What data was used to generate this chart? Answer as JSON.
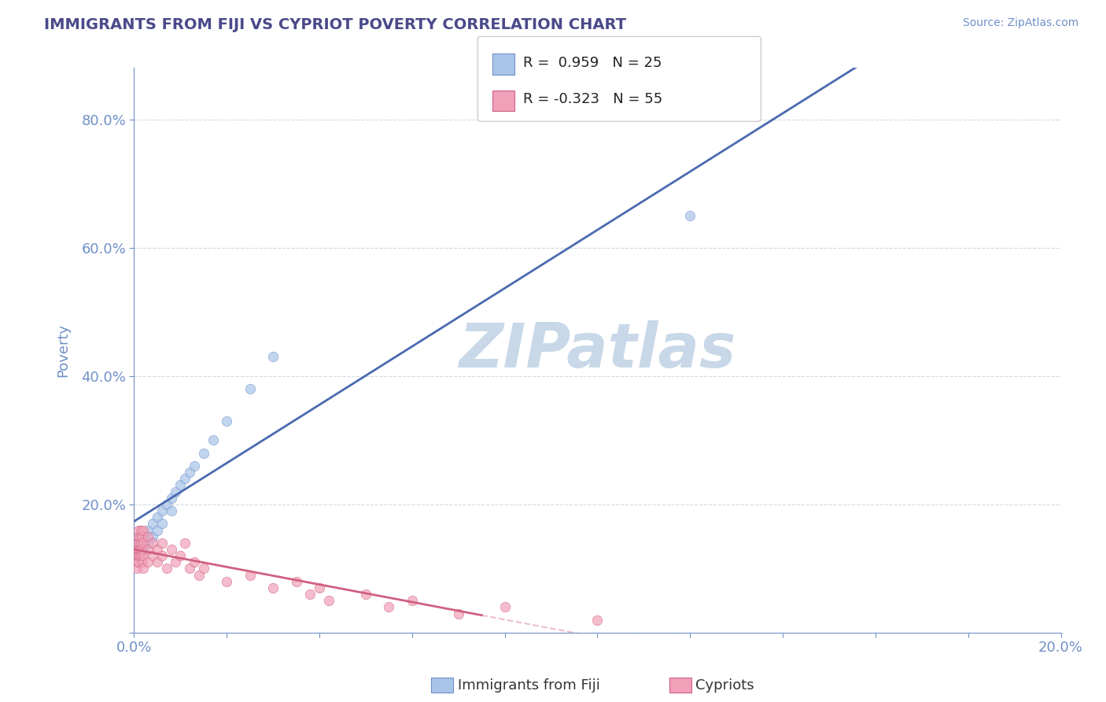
{
  "title": "IMMIGRANTS FROM FIJI VS CYPRIOT POVERTY CORRELATION CHART",
  "source_text": "Source: ZipAtlas.com",
  "ylabel": "Poverty",
  "xlim": [
    0.0,
    0.2
  ],
  "ylim": [
    0.0,
    0.88
  ],
  "xticks": [
    0.0,
    0.02,
    0.04,
    0.06,
    0.08,
    0.1,
    0.12,
    0.14,
    0.16,
    0.18,
    0.2
  ],
  "ytick_positions": [
    0.0,
    0.2,
    0.4,
    0.6,
    0.8
  ],
  "title_color": "#4a4a8a",
  "axis_color": "#7090c8",
  "tick_color": "#7090c8",
  "watermark_color": "#c8d8e8",
  "background_color": "#ffffff",
  "legend_R1": "0.959",
  "legend_N1": "25",
  "legend_R2": "-0.323",
  "legend_N2": "55",
  "fiji_color": "#a8c4e8",
  "fiji_edge_color": "#7090c8",
  "cypriot_color": "#f0a0b8",
  "cypriot_edge_color": "#d06080",
  "fiji_line_color": "#4a6ab0",
  "cypriot_line_color": "#d06080",
  "fiji_scatter_x": [
    0.001,
    0.002,
    0.002,
    0.003,
    0.003,
    0.004,
    0.004,
    0.005,
    0.005,
    0.006,
    0.006,
    0.007,
    0.008,
    0.008,
    0.009,
    0.01,
    0.011,
    0.012,
    0.013,
    0.015,
    0.017,
    0.02,
    0.025,
    0.03,
    0.12
  ],
  "fiji_scatter_y": [
    0.14,
    0.15,
    0.13,
    0.16,
    0.14,
    0.17,
    0.15,
    0.18,
    0.16,
    0.19,
    0.17,
    0.2,
    0.21,
    0.19,
    0.22,
    0.23,
    0.24,
    0.25,
    0.26,
    0.28,
    0.3,
    0.33,
    0.38,
    0.43,
    0.65
  ],
  "cypriot_scatter_x": [
    0.0005,
    0.0006,
    0.0007,
    0.0008,
    0.0008,
    0.0009,
    0.0009,
    0.001,
    0.001,
    0.001,
    0.0012,
    0.0012,
    0.0013,
    0.0013,
    0.0014,
    0.0015,
    0.0015,
    0.0016,
    0.0017,
    0.0018,
    0.0019,
    0.002,
    0.002,
    0.002,
    0.003,
    0.003,
    0.003,
    0.004,
    0.004,
    0.005,
    0.005,
    0.006,
    0.006,
    0.007,
    0.008,
    0.009,
    0.01,
    0.011,
    0.012,
    0.013,
    0.014,
    0.015,
    0.02,
    0.025,
    0.03,
    0.035,
    0.038,
    0.04,
    0.042,
    0.05,
    0.055,
    0.06,
    0.07,
    0.08,
    0.1
  ],
  "cypriot_scatter_y": [
    0.12,
    0.1,
    0.13,
    0.11,
    0.14,
    0.12,
    0.15,
    0.13,
    0.11,
    0.16,
    0.14,
    0.12,
    0.15,
    0.13,
    0.16,
    0.14,
    0.12,
    0.13,
    0.15,
    0.11,
    0.14,
    0.12,
    0.16,
    0.1,
    0.13,
    0.15,
    0.11,
    0.14,
    0.12,
    0.13,
    0.11,
    0.14,
    0.12,
    0.1,
    0.13,
    0.11,
    0.12,
    0.14,
    0.1,
    0.11,
    0.09,
    0.1,
    0.08,
    0.09,
    0.07,
    0.08,
    0.06,
    0.07,
    0.05,
    0.06,
    0.04,
    0.05,
    0.03,
    0.04,
    0.02
  ],
  "grid_color": "#c0c8d8",
  "grid_alpha": 0.7,
  "marker_size": 80,
  "marker_alpha": 0.7
}
